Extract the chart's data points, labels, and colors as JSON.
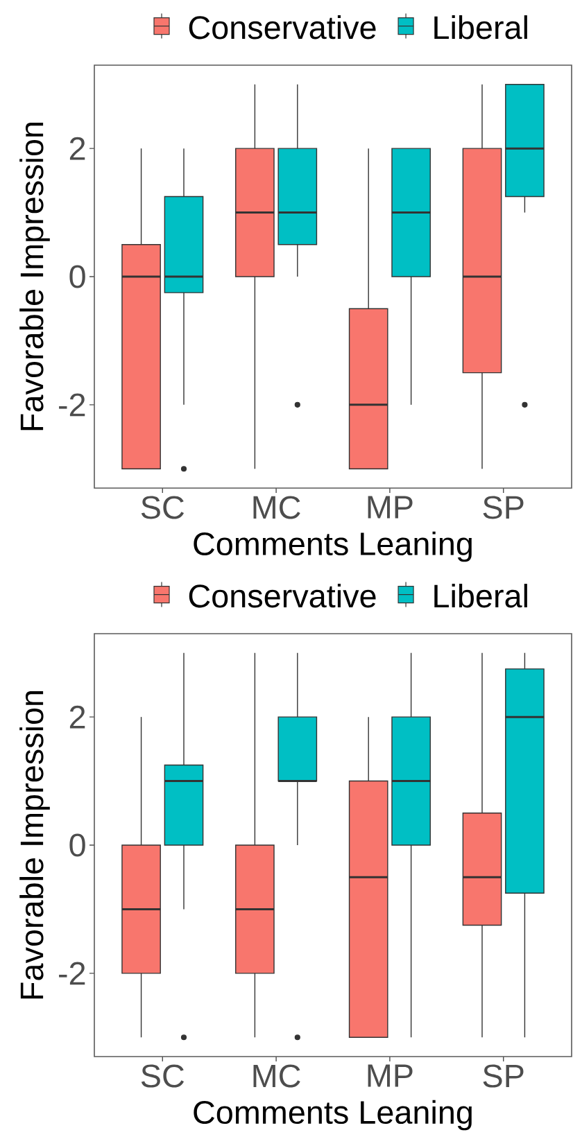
{
  "chart_data": [
    {
      "type": "box",
      "xlabel": "Comments Leaning",
      "ylabel": "Favorable Impression",
      "categories": [
        "SC",
        "MC",
        "MP",
        "SP"
      ],
      "ylim": [
        -3.3,
        3.3
      ],
      "yticks": [
        -2,
        0,
        2
      ],
      "legend": "top",
      "series": [
        {
          "name": "Conservative",
          "color": "#f8766d",
          "boxes": [
            {
              "low": -3,
              "q1": -3,
              "median": 0,
              "q3": 0.5,
              "high": 2
            },
            {
              "low": -3,
              "q1": 0,
              "median": 1,
              "q3": 2,
              "high": 3
            },
            {
              "low": -3,
              "q1": -3,
              "median": -2,
              "q3": -0.5,
              "high": 2
            },
            {
              "low": -3,
              "q1": -1.5,
              "median": 0,
              "q3": 2,
              "high": 3
            }
          ]
        },
        {
          "name": "Liberal",
          "color": "#00bfc4",
          "boxes": [
            {
              "low": -2,
              "q1": -0.25,
              "median": 0,
              "q3": 1.25,
              "high": 2,
              "outliers": [
                -3
              ]
            },
            {
              "low": 0,
              "q1": 0.5,
              "median": 1,
              "q3": 2,
              "high": 3,
              "outliers": [
                -2
              ]
            },
            {
              "low": -2,
              "q1": 0,
              "median": 1,
              "q3": 2,
              "high": 2
            },
            {
              "low": 1,
              "q1": 1.25,
              "median": 2,
              "q3": 3,
              "high": 3,
              "outliers": [
                -2
              ]
            }
          ]
        }
      ]
    },
    {
      "type": "box",
      "xlabel": "Comments Leaning",
      "ylabel": "Favorable Impression",
      "categories": [
        "SC",
        "MC",
        "MP",
        "SP"
      ],
      "ylim": [
        -3.3,
        3.3
      ],
      "yticks": [
        -2,
        0,
        2
      ],
      "legend": "top",
      "series": [
        {
          "name": "Conservative",
          "color": "#f8766d",
          "boxes": [
            {
              "low": -3,
              "q1": -2,
              "median": -1,
              "q3": 0,
              "high": 2
            },
            {
              "low": -3,
              "q1": -2,
              "median": -1,
              "q3": 0,
              "high": 3
            },
            {
              "low": -3,
              "q1": -3,
              "median": -0.5,
              "q3": 1,
              "high": 2
            },
            {
              "low": -3,
              "q1": -1.25,
              "median": -0.5,
              "q3": 0.5,
              "high": 3
            }
          ]
        },
        {
          "name": "Liberal",
          "color": "#00bfc4",
          "boxes": [
            {
              "low": -1,
              "q1": 0,
              "median": 1,
              "q3": 1.25,
              "high": 3,
              "outliers": [
                -3
              ]
            },
            {
              "low": 0,
              "q1": 1,
              "median": 1,
              "q3": 2,
              "high": 3,
              "outliers": [
                -3
              ]
            },
            {
              "low": -3,
              "q1": 0,
              "median": 1,
              "q3": 2,
              "high": 3
            },
            {
              "low": -3,
              "q1": -0.75,
              "median": 2,
              "q3": 2.75,
              "high": 3
            }
          ]
        }
      ]
    }
  ]
}
